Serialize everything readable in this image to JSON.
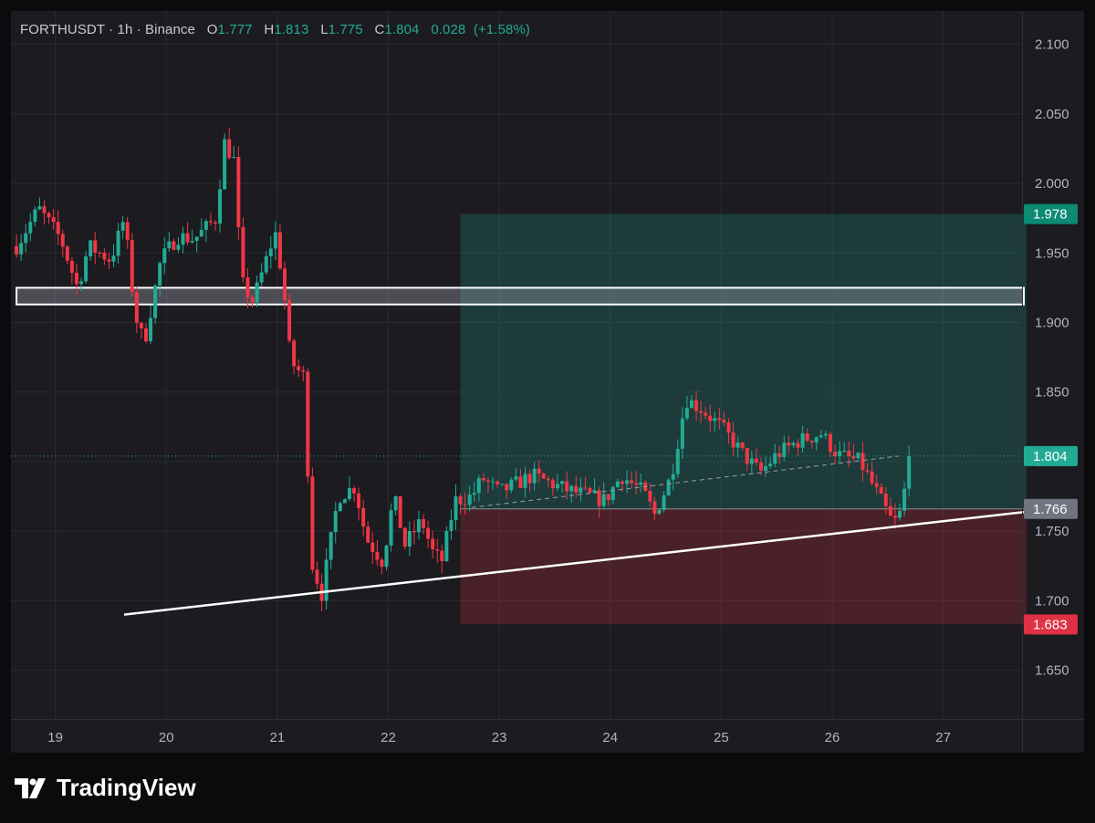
{
  "header": {
    "symbol": "FORTHUSDT",
    "sep1": " · ",
    "interval": "1h",
    "sep2": " · ",
    "exchange": "Binance",
    "open_label": "O",
    "open": "1.777",
    "high_label": "H",
    "high": "1.813",
    "low_label": "L",
    "low": "1.775",
    "close_label": "C",
    "close": "1.804",
    "change": "0.028",
    "change_pct": "(+1.58%)"
  },
  "brand": {
    "name": "TradingView"
  },
  "colors": {
    "up": "#22ab94",
    "down": "#f23645",
    "background": "#1b1b20",
    "grid": "#2a2b33",
    "profit_zone": "rgba(34,171,148,0.22)",
    "loss_zone": "rgba(242,54,69,0.22)"
  },
  "chart_data": {
    "type": "candlestick",
    "title": "FORTHUSDT · 1h · Binance",
    "y_axis": {
      "ticks": [
        "2.100",
        "2.050",
        "2.000",
        "1.950",
        "1.900",
        "1.850",
        "1.800",
        "1.750",
        "1.700",
        "1.650"
      ],
      "ylim": [
        1.615,
        2.124
      ]
    },
    "x_axis": {
      "ticks": [
        "19",
        "20",
        "21",
        "22",
        "23",
        "24",
        "25",
        "26",
        "27"
      ]
    },
    "price_labels": [
      {
        "label": "1.978",
        "value": 1.978,
        "kind": "target"
      },
      {
        "label": "1.804",
        "value": 1.804,
        "kind": "last"
      },
      {
        "label": "1.766",
        "value": 1.766,
        "kind": "entry"
      },
      {
        "label": "1.683",
        "value": 1.683,
        "kind": "stop"
      }
    ],
    "position": {
      "start_day": 22.65,
      "end_day": 27.75,
      "entry": 1.766,
      "target": 1.978,
      "stop": 1.683
    },
    "resistance_zone": {
      "top": 1.925,
      "bottom": 1.913,
      "start_day": 18.65
    },
    "trendline": {
      "start": {
        "day": 19.62,
        "price": 1.69
      },
      "end": {
        "day": 27.75,
        "price": 1.764
      }
    },
    "projection_line": {
      "start": {
        "day": 22.75,
        "price": 1.767
      },
      "end": {
        "day": 26.6,
        "price": 1.804
      }
    },
    "last_price": 1.804,
    "waypoints": [
      [
        18.65,
        1.955
      ],
      [
        18.85,
        1.982
      ],
      [
        19.05,
        1.96
      ],
      [
        19.2,
        1.925
      ],
      [
        19.3,
        1.955
      ],
      [
        19.5,
        1.945
      ],
      [
        19.62,
        1.975
      ],
      [
        19.72,
        1.905
      ],
      [
        19.8,
        1.885
      ],
      [
        19.95,
        1.945
      ],
      [
        20.1,
        1.962
      ],
      [
        20.25,
        1.96
      ],
      [
        20.45,
        1.975
      ],
      [
        20.52,
        2.03
      ],
      [
        20.62,
        2.015
      ],
      [
        20.67,
        1.93
      ],
      [
        20.78,
        1.915
      ],
      [
        20.9,
        1.945
      ],
      [
        20.98,
        1.965
      ],
      [
        21.05,
        1.93
      ],
      [
        21.12,
        1.872
      ],
      [
        21.25,
        1.86
      ],
      [
        21.3,
        1.73
      ],
      [
        21.4,
        1.705
      ],
      [
        21.55,
        1.775
      ],
      [
        21.7,
        1.782
      ],
      [
        21.8,
        1.745
      ],
      [
        21.95,
        1.728
      ],
      [
        22.05,
        1.775
      ],
      [
        22.15,
        1.74
      ],
      [
        22.3,
        1.758
      ],
      [
        22.4,
        1.735
      ],
      [
        22.48,
        1.728
      ],
      [
        22.6,
        1.772
      ],
      [
        22.75,
        1.775
      ],
      [
        22.85,
        1.788
      ],
      [
        23.0,
        1.778
      ],
      [
        23.3,
        1.79
      ],
      [
        23.6,
        1.78
      ],
      [
        23.95,
        1.772
      ],
      [
        24.1,
        1.79
      ],
      [
        24.3,
        1.778
      ],
      [
        24.4,
        1.762
      ],
      [
        24.55,
        1.79
      ],
      [
        24.68,
        1.845
      ],
      [
        24.82,
        1.838
      ],
      [
        25.0,
        1.825
      ],
      [
        25.2,
        1.805
      ],
      [
        25.35,
        1.792
      ],
      [
        25.5,
        1.805
      ],
      [
        25.7,
        1.815
      ],
      [
        25.9,
        1.82
      ],
      [
        26.05,
        1.805
      ],
      [
        26.25,
        1.8
      ],
      [
        26.4,
        1.778
      ],
      [
        26.55,
        1.755
      ],
      [
        26.62,
        1.764
      ],
      [
        26.7,
        1.804
      ]
    ]
  }
}
